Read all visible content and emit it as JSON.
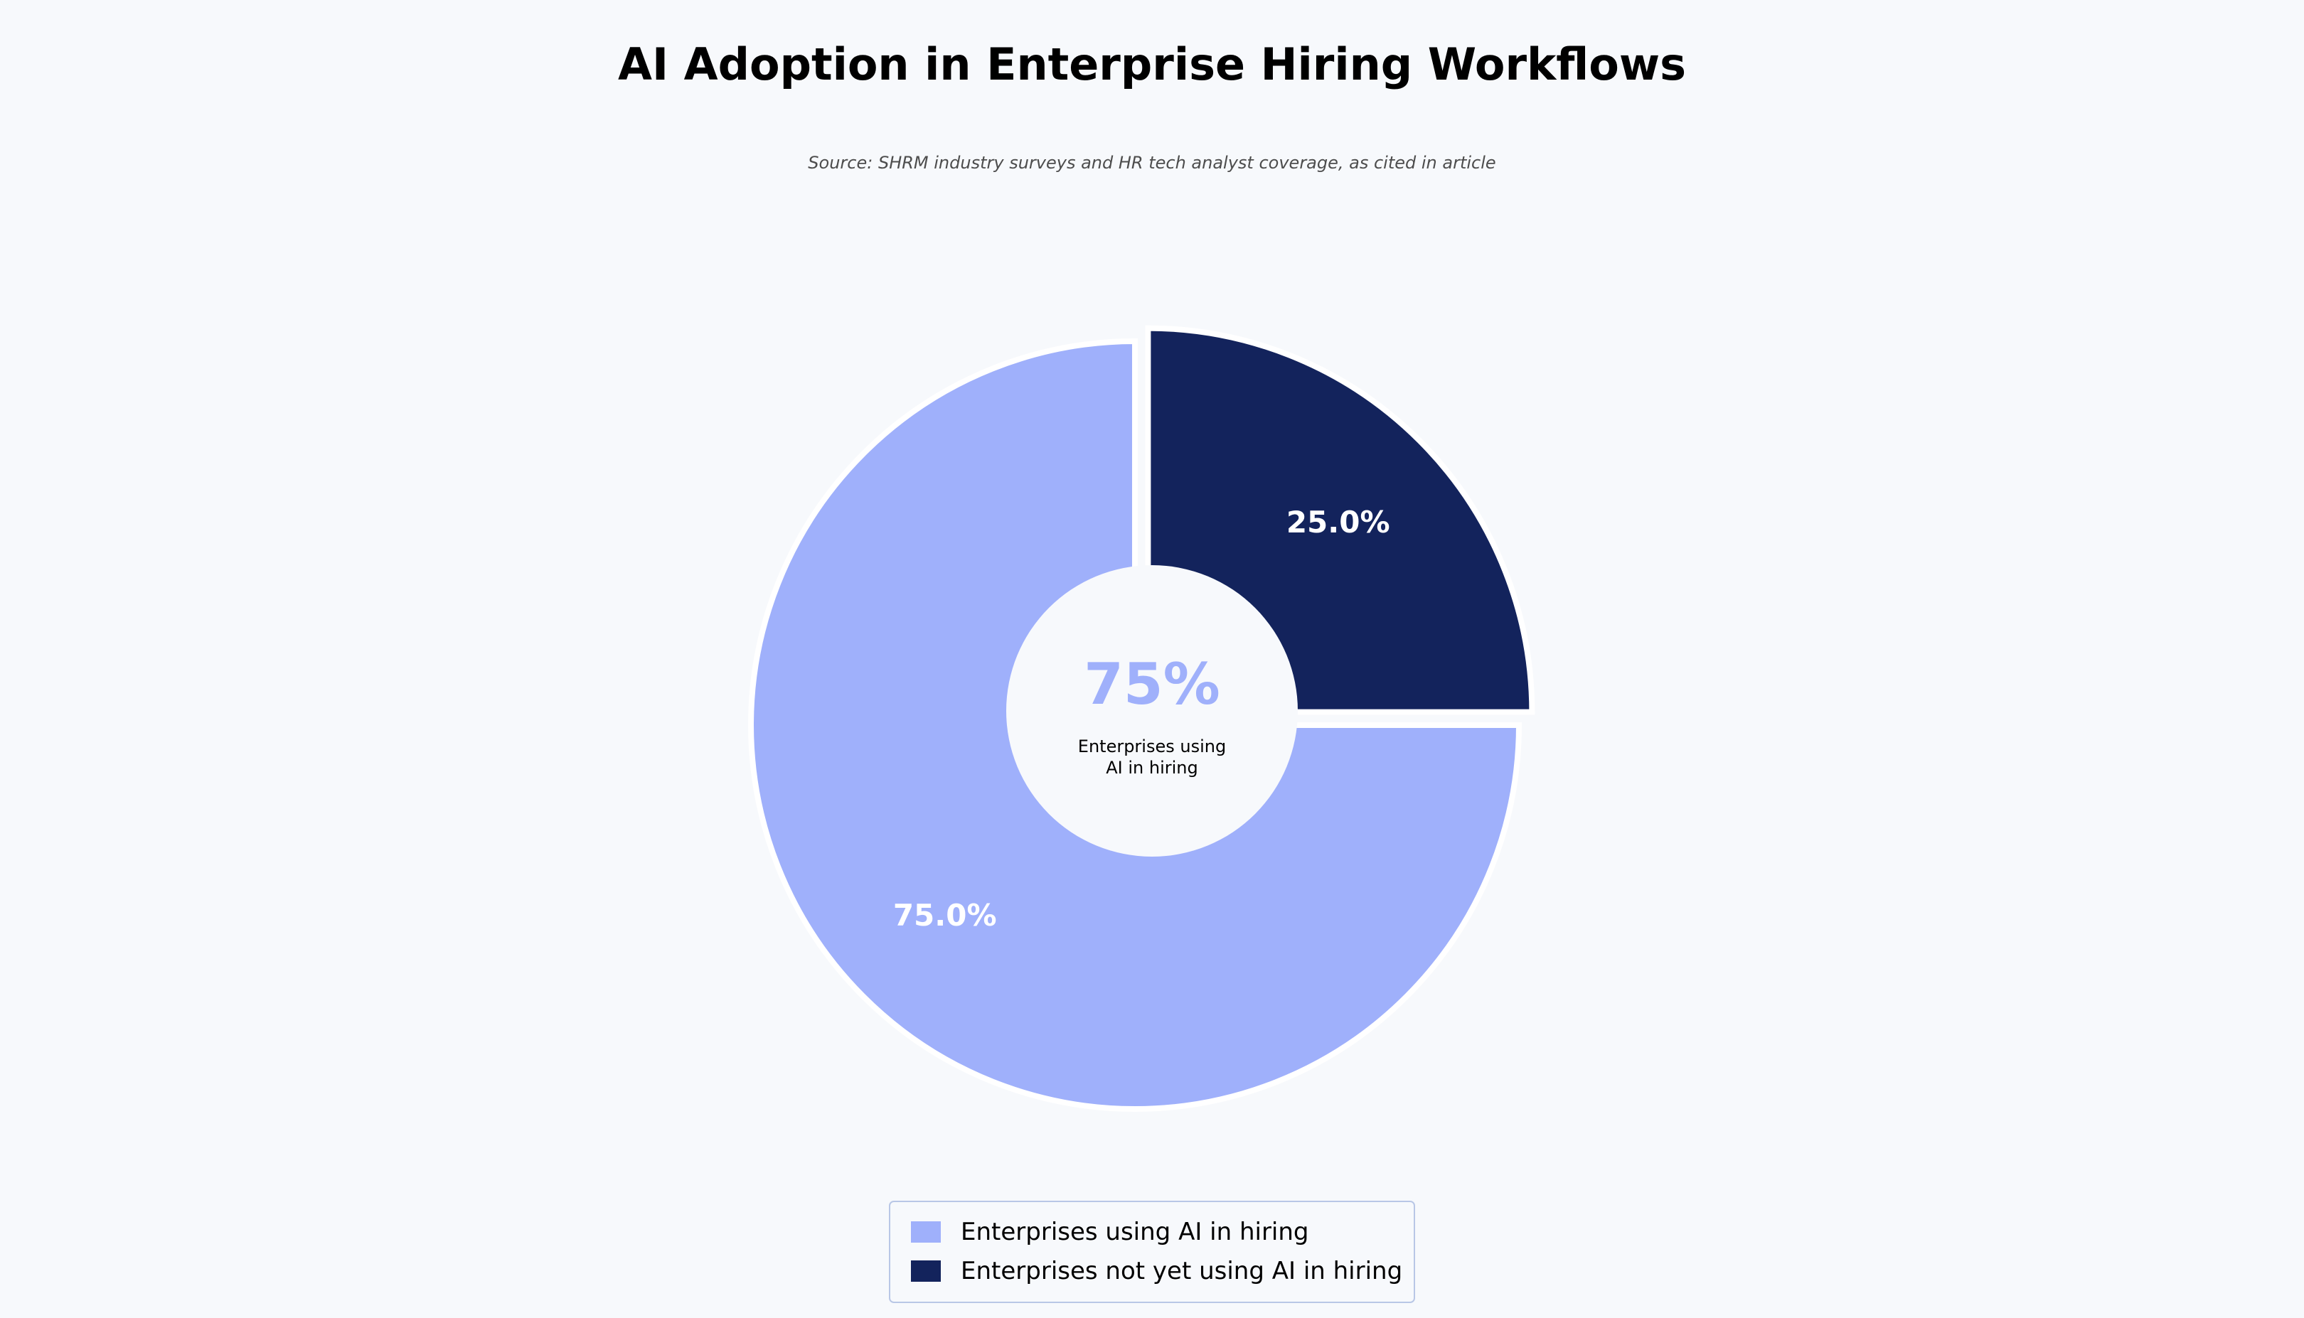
{
  "chart_data": {
    "type": "pie",
    "title": "AI Adoption in Enterprise Hiring Workflows",
    "subtitle": "Source: SHRM industry surveys and HR tech analyst coverage, as cited in article",
    "donut": true,
    "slices": [
      {
        "label": "Enterprises using AI in hiring",
        "value": 75.0,
        "value_label": "75.0%",
        "color": "#9fb0fb",
        "exploded": false
      },
      {
        "label": "Enterprises not yet using AI in hiring",
        "value": 25.0,
        "value_label": "25.0%",
        "color": "#13235c",
        "exploded": true
      }
    ],
    "center_text": {
      "value": "75%",
      "caption_lines": [
        "Enterprises using",
        "AI in hiring"
      ],
      "color": "#9fb0fb"
    },
    "legend_position": "bottom-center",
    "background_color": "#f7f9fc"
  }
}
